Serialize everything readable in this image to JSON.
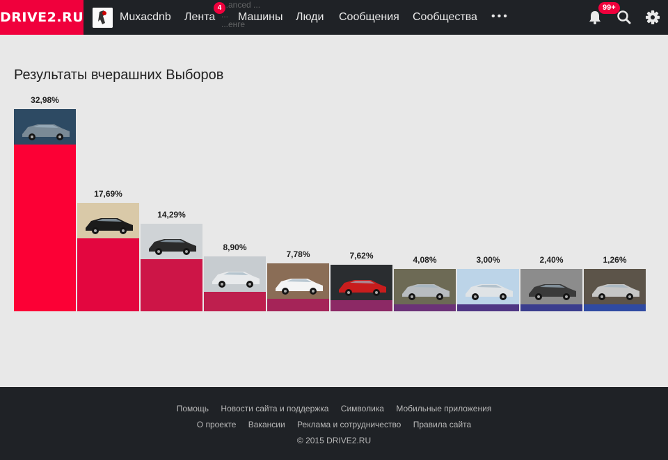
{
  "header": {
    "logo": "DRIVE2.RU",
    "username": "Muxacdnb",
    "nav": [
      {
        "label": "Лента",
        "badge": "4"
      },
      {
        "label": "Машины"
      },
      {
        "label": "Люди"
      },
      {
        "label": "Сообщения"
      },
      {
        "label": "Сообщества"
      }
    ],
    "more": "•••",
    "notifications_badge": "99+",
    "ghost_text": [
      "...anced ...",
      "...",
      "...енге"
    ]
  },
  "page": {
    "title": "Результаты вчерашних Выборов"
  },
  "chart_data": {
    "type": "bar",
    "categories": [
      "",
      "",
      "",
      "",
      "",
      "",
      "",
      "",
      "",
      ""
    ],
    "values": [
      32.98,
      17.69,
      14.29,
      8.9,
      7.78,
      7.62,
      4.08,
      3.0,
      2.4,
      1.26
    ],
    "labels": [
      "32,98%",
      "17,69%",
      "14,29%",
      "8,90%",
      "7,78%",
      "7,62%",
      "4,08%",
      "3,00%",
      "2,40%",
      "1,26%"
    ],
    "colors": [
      "#fc0035",
      "#e3063f",
      "#cd1547",
      "#be1f4e",
      "#a52458",
      "#8c2965",
      "#6b3277",
      "#4f3684",
      "#3a3d8d",
      "#2f4aa2"
    ],
    "ylim": [
      0,
      32.98
    ],
    "grid": false
  },
  "footer": {
    "links_row1": [
      "Помощь",
      "Новости сайта и поддержка",
      "Символика",
      "Мобильные приложения"
    ],
    "links_row2": [
      "О проекте",
      "Вакансии",
      "Реклама и сотрудничество",
      "Правила сайта"
    ],
    "copyright": "© 2015 DRIVE2.RU"
  }
}
